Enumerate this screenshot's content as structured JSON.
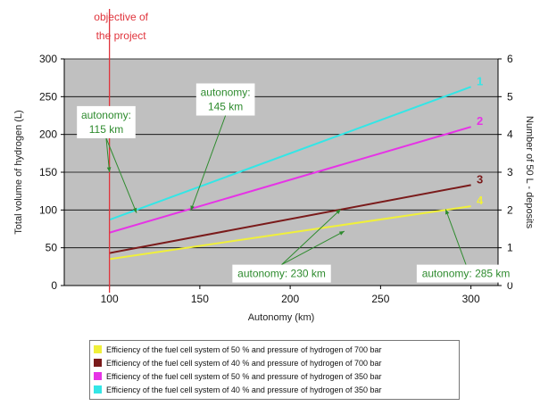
{
  "chart_data": {
    "type": "line",
    "xlabel": "Autonomy (km)",
    "ylabel": "Total volume of hydrogen (L)",
    "y2label": "Number of 50 L - deposits",
    "xlim": [
      75,
      315
    ],
    "ylim": [
      0,
      300
    ],
    "y2lim": [
      0,
      6
    ],
    "xticks": [
      100,
      150,
      200,
      250,
      300
    ],
    "yticks": [
      0,
      50,
      100,
      150,
      200,
      250,
      300
    ],
    "y2ticks": [
      0,
      1,
      2,
      3,
      4,
      5,
      6
    ],
    "grid": "horizontal",
    "plot_background": "#c0c0c0",
    "objective": {
      "x": 100,
      "label_line1": "objective of",
      "label_line2": "the project",
      "color": "#e0343c"
    },
    "series": [
      {
        "id": "1",
        "name": "Efficiency of the fuel cell system of 40 % and pressure of hydrogen of 350 bar",
        "color": "#33e6e6",
        "x": [
          100,
          300
        ],
        "y": [
          87,
          263
        ]
      },
      {
        "id": "2",
        "name": "Efficiency of the fuel cell system of 50 % and pressure of hydrogen of 350 bar",
        "color": "#e633e6",
        "x": [
          100,
          300
        ],
        "y": [
          70,
          210
        ]
      },
      {
        "id": "3",
        "name": "Efficiency of the fuel cell system of 40 % and pressure of hydrogen of 700 bar",
        "color": "#7a1a1a",
        "x": [
          100,
          300
        ],
        "y": [
          43,
          133
        ]
      },
      {
        "id": "4",
        "name": "Efficiency of the fuel cell system of 50 % and pressure of hydrogen of 700 bar",
        "color": "#f0f03a",
        "x": [
          100,
          300
        ],
        "y": [
          35,
          105
        ]
      }
    ],
    "legend_order": [
      "4",
      "3",
      "2",
      "1"
    ],
    "annotations": [
      {
        "lines": [
          "autonomy:",
          "115 km"
        ],
        "box_x": 82,
        "box_y": 195,
        "arrows_to": [
          [
            100,
            150
          ],
          [
            115,
            96
          ]
        ]
      },
      {
        "lines": [
          "autonomy:",
          "145 km"
        ],
        "box_x": 148,
        "box_y": 225,
        "arrows_to": [
          [
            145,
            99
          ]
        ]
      },
      {
        "lines": [
          "autonomy: 230 km"
        ],
        "box_x": 168,
        "box_y": 4,
        "arrows_to": [
          [
            228,
            101
          ],
          [
            230,
            72
          ]
        ]
      },
      {
        "lines": [
          "autonomy: 285 km"
        ],
        "box_x": 270,
        "box_y": 4,
        "arrows_to": [
          [
            286,
            101
          ]
        ]
      }
    ]
  }
}
